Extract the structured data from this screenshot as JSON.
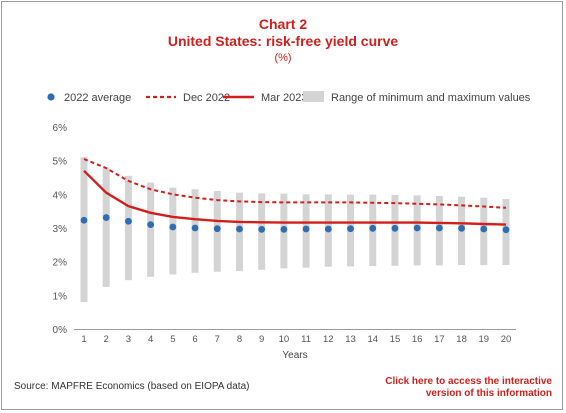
{
  "header": {
    "chart_label": "Chart 2",
    "title": "United States: risk-free yield curve",
    "unit": "(%)"
  },
  "footer": {
    "source": "Source: MAPFRE Economics (based on EIOPA data)",
    "link_line1": "Click here to access the interactive",
    "link_line2": "version of this information"
  },
  "colors": {
    "accent": "#d21f1b",
    "range_bar": "#d4d4d4",
    "dots": "#2e6db3",
    "axis_text": "#555555"
  },
  "chart_data": {
    "type": "line",
    "title": "United States: risk-free yield curve",
    "xlabel": "Years",
    "ylabel": "",
    "x": [
      1,
      2,
      3,
      4,
      5,
      6,
      7,
      8,
      9,
      10,
      11,
      12,
      13,
      14,
      15,
      16,
      17,
      18,
      19,
      20
    ],
    "ylim": [
      0,
      6
    ],
    "yticks": [
      0,
      1,
      2,
      3,
      4,
      5,
      6
    ],
    "ytick_labels": [
      "0%",
      "1%",
      "2%",
      "3%",
      "4%",
      "5%",
      "6%"
    ],
    "grid": false,
    "legend_position": "top",
    "legend": [
      "2022 average",
      "Dec 2022",
      "Mar 2023",
      "Range of minimum and maximum values"
    ],
    "range": {
      "name": "Range of minimum and maximum values",
      "min": [
        0.8,
        1.25,
        1.45,
        1.55,
        1.62,
        1.67,
        1.7,
        1.72,
        1.76,
        1.8,
        1.82,
        1.85,
        1.86,
        1.87,
        1.88,
        1.89,
        1.89,
        1.9,
        1.9,
        1.9
      ],
      "max": [
        5.1,
        4.8,
        4.55,
        4.35,
        4.2,
        4.15,
        4.1,
        4.05,
        4.03,
        4.02,
        4.0,
        4.0,
        3.99,
        3.99,
        3.98,
        3.97,
        3.95,
        3.93,
        3.9,
        3.86
      ]
    },
    "series": [
      {
        "name": "2022 average",
        "style": "dots",
        "values": [
          3.23,
          3.31,
          3.2,
          3.1,
          3.03,
          3.0,
          2.98,
          2.97,
          2.96,
          2.96,
          2.97,
          2.97,
          2.98,
          2.99,
          2.99,
          3.0,
          3.0,
          2.99,
          2.97,
          2.95
        ]
      },
      {
        "name": "Dec 2022",
        "style": "dashed",
        "values": [
          5.05,
          4.78,
          4.4,
          4.15,
          4.0,
          3.9,
          3.83,
          3.79,
          3.77,
          3.76,
          3.76,
          3.76,
          3.76,
          3.75,
          3.74,
          3.72,
          3.7,
          3.67,
          3.64,
          3.6
        ]
      },
      {
        "name": "Mar 2023",
        "style": "solid",
        "values": [
          4.7,
          4.05,
          3.65,
          3.45,
          3.33,
          3.26,
          3.21,
          3.18,
          3.17,
          3.16,
          3.16,
          3.16,
          3.16,
          3.16,
          3.16,
          3.16,
          3.15,
          3.14,
          3.12,
          3.1
        ]
      }
    ]
  }
}
